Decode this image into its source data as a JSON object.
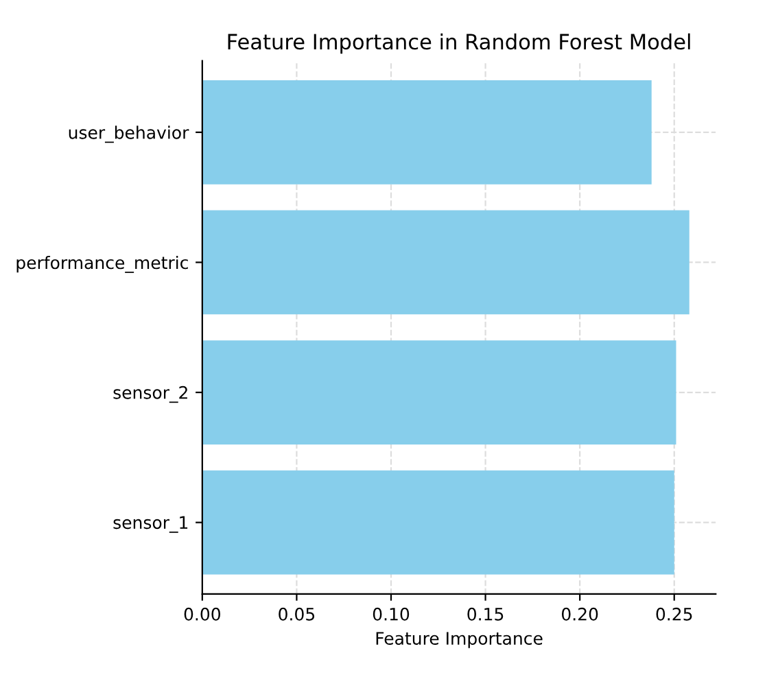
{
  "chart_data": {
    "type": "bar",
    "orientation": "horizontal",
    "title": "Feature Importance in Random Forest Model",
    "xlabel": "Feature Importance",
    "categories": [
      "user_behavior",
      "performance_metric",
      "sensor_2",
      "sensor_1"
    ],
    "values": [
      0.238,
      0.258,
      0.251,
      0.25
    ],
    "color": "#87ceeb",
    "xlim": [
      0,
      0.272
    ],
    "xticks": [
      {
        "value": 0,
        "label": "0.00"
      },
      0.05,
      {
        "value": 0.1,
        "label": "0.10"
      },
      0.15,
      {
        "value": 0.2,
        "label": "0.20"
      },
      0.25
    ],
    "grid": true
  }
}
